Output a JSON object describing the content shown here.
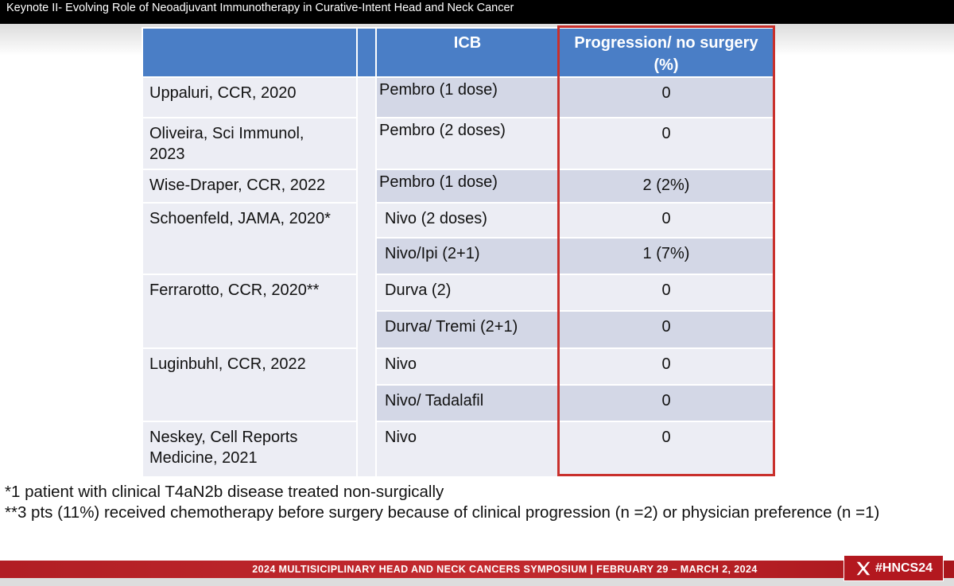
{
  "title": "Keynote II- Evolving Role of Neoadjuvant Immunotherapy in Curative-Intent Head and Neck Cancer",
  "table": {
    "headers": [
      "",
      "",
      "ICB",
      "Progression/ no surgery (%)"
    ],
    "header_prog_line1": "Progression/ no surgery",
    "header_prog_line2": "(%)",
    "rows": [
      {
        "study_line1": "Uppaluri, CCR, 2020",
        "study_line2": "",
        "icb": "Pembro (1 dose)",
        "progression": "0"
      },
      {
        "study_line1": "Oliveira, Sci Immunol,",
        "study_line2": "2023",
        "icb": "Pembro (2 doses)",
        "progression": "0"
      },
      {
        "study_line1": "Wise-Draper, CCR, 2022",
        "study_line2": "",
        "icb": "Pembro (1 dose)",
        "progression": "2 (2%)"
      },
      {
        "study_line1": "Schoenfeld, JAMA, 2020*",
        "study_line2": "",
        "icb": "Nivo (2 doses)",
        "progression": "0"
      },
      {
        "study_line1": "",
        "study_line2": "",
        "icb": "Nivo/Ipi (2+1)",
        "progression": "1 (7%)"
      },
      {
        "study_line1": "Ferrarotto, CCR, 2020**",
        "study_line2": "",
        "icb": "Durva (2)",
        "progression": "0"
      },
      {
        "study_line1": "",
        "study_line2": "",
        "icb": "Durva/ Tremi (2+1)",
        "progression": "0"
      },
      {
        "study_line1": "Luginbuhl, CCR, 2022",
        "study_line2": "",
        "icb": "Nivo",
        "progression": "0"
      },
      {
        "study_line1": "",
        "study_line2": "",
        "icb": "Nivo/ Tadalafil",
        "progression": "0"
      },
      {
        "study_line1": "Neskey, Cell Reports",
        "study_line2": "Medicine, 2021",
        "icb": "Nivo",
        "progression": "0"
      }
    ]
  },
  "footnotes": [
    "*1 patient with clinical T4aN2b disease treated non-surgically",
    "**3 pts (11%) received chemotherapy before surgery because of clinical progression (n =2) or physician preference (n =1)"
  ],
  "footer": {
    "text": "2024 MULTISICIPLINARY HEAD AND NECK CANCERS SYMPOSIUM  |  FEBRUARY 29 – MARCH 2, 2024",
    "hashtag": "#HNCS24",
    "icon": "x-logo-icon"
  },
  "colors": {
    "header_blue": "#4a7ec6",
    "row_light": "#ecedf4",
    "row_dark": "#d3d7e6",
    "highlight_red": "#c9302c",
    "footer_red": "#b3181f"
  }
}
